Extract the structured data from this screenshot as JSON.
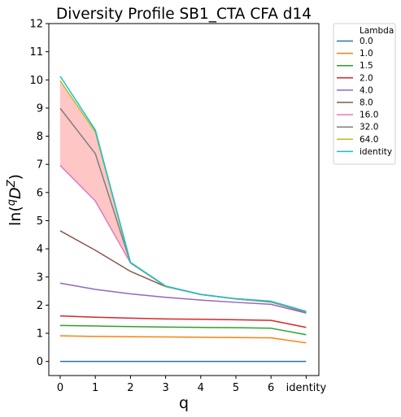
{
  "chart_data": {
    "type": "line",
    "title": "Diversity Profile SB1_CTA CFA d14",
    "xlabel": "q",
    "ylabel_parts": [
      "ln(",
      "q",
      "D",
      "Z",
      ")"
    ],
    "x_tick_labels": [
      "0",
      "1",
      "2",
      "3",
      "4",
      "5",
      "6",
      "identity"
    ],
    "ylim": [
      -0.5,
      12
    ],
    "yticks": [
      0,
      1,
      2,
      3,
      4,
      5,
      6,
      7,
      8,
      9,
      10,
      11,
      12
    ],
    "grid": false,
    "legend": {
      "title": "Lambda",
      "placement": "outside-right-top"
    },
    "shaded_band": {
      "between": [
        "16.0",
        "64.0"
      ],
      "color": "#ffc6c6"
    },
    "series": [
      {
        "name": "0.0",
        "color": "#1f77b4",
        "values": [
          0,
          0,
          0,
          0,
          0,
          0,
          0,
          0
        ]
      },
      {
        "name": "1.0",
        "color": "#ff7f0e",
        "values": [
          0.91,
          0.89,
          0.88,
          0.87,
          0.86,
          0.85,
          0.84,
          0.66
        ]
      },
      {
        "name": "1.5",
        "color": "#2ca02c",
        "values": [
          1.28,
          1.26,
          1.24,
          1.22,
          1.21,
          1.2,
          1.18,
          0.95
        ]
      },
      {
        "name": "2.0",
        "color": "#d62728",
        "values": [
          1.62,
          1.57,
          1.54,
          1.51,
          1.5,
          1.48,
          1.46,
          1.21
        ]
      },
      {
        "name": "4.0",
        "color": "#9467bd",
        "values": [
          2.78,
          2.56,
          2.4,
          2.28,
          2.18,
          2.1,
          2.03,
          1.72
        ]
      },
      {
        "name": "8.0",
        "color": "#8c564b",
        "values": [
          4.64,
          3.95,
          3.2,
          2.66,
          2.38,
          2.22,
          2.11,
          1.75
        ]
      },
      {
        "name": "16.0",
        "color": "#e377c2",
        "values": [
          6.96,
          5.7,
          3.5,
          2.67,
          2.38,
          2.22,
          2.12,
          1.76
        ]
      },
      {
        "name": "32.0",
        "color": "#7f7f7f",
        "values": [
          8.99,
          7.38,
          3.5,
          2.67,
          2.38,
          2.22,
          2.12,
          1.76
        ]
      },
      {
        "name": "64.0",
        "color": "#bcbd22",
        "values": [
          9.97,
          8.15,
          3.51,
          2.67,
          2.38,
          2.22,
          2.13,
          1.77
        ]
      },
      {
        "name": "identity",
        "color": "#17becf",
        "values": [
          10.13,
          8.22,
          3.52,
          2.68,
          2.38,
          2.23,
          2.14,
          1.78
        ]
      }
    ]
  }
}
